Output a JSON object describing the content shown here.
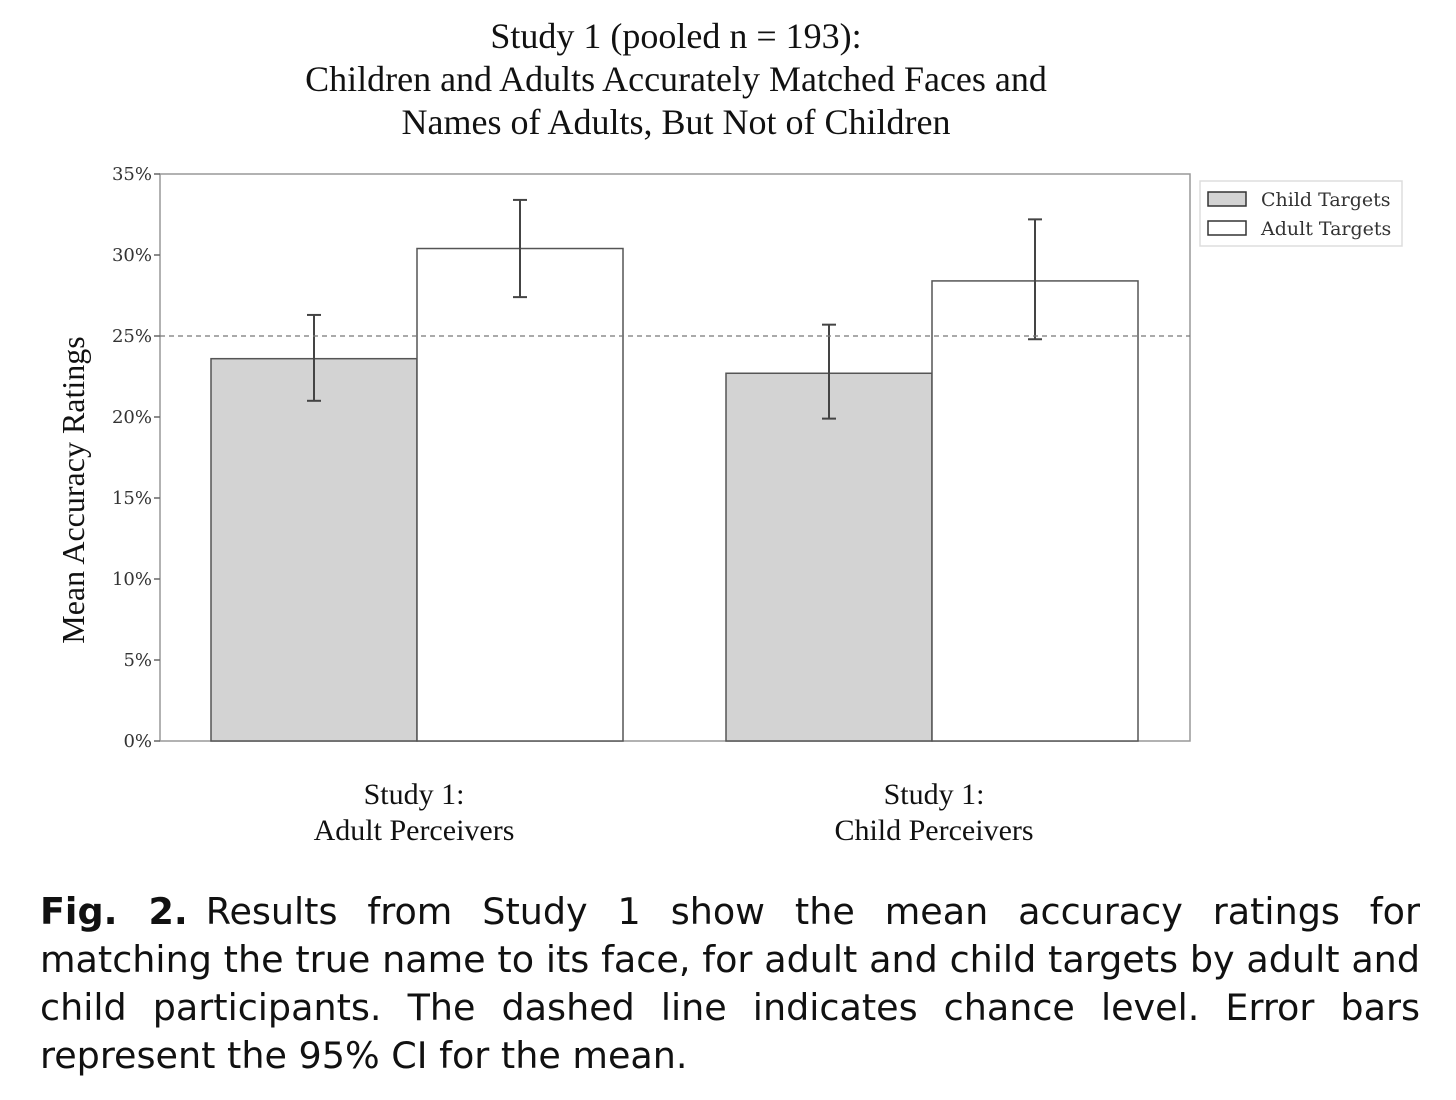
{
  "chart_data": {
    "type": "bar",
    "title_lines": [
      "Study 1 (pooled n = 193):",
      "Children and Adults Accurately Matched Faces and",
      "Names of Adults, But Not of Children"
    ],
    "ylabel": "Mean Accuracy Ratings",
    "xlabel": "",
    "categories": [
      [
        "Study 1:",
        "Adult Perceivers"
      ],
      [
        "Study 1:",
        "Child Perceivers"
      ]
    ],
    "ylim": [
      0,
      0.35
    ],
    "yticks": [
      0,
      0.05,
      0.1,
      0.15,
      0.2,
      0.25,
      0.3,
      0.35
    ],
    "ytick_labels": [
      "0%",
      "5%",
      "10%",
      "15%",
      "20%",
      "25%",
      "30%",
      "35%"
    ],
    "series": [
      {
        "name": "Child Targets",
        "color": "#d3d3d3",
        "values": [
          0.236,
          0.227
        ],
        "ci_low": [
          0.21,
          0.199
        ],
        "ci_high": [
          0.263,
          0.257
        ]
      },
      {
        "name": "Adult Targets",
        "color": "#ffffff",
        "values": [
          0.304,
          0.284
        ],
        "ci_low": [
          0.274,
          0.248
        ],
        "ci_high": [
          0.334,
          0.322
        ]
      }
    ],
    "reference_line": {
      "value": 0.25,
      "style": "dashed"
    },
    "legend_position": "outside-top-right",
    "grid": false
  },
  "caption": {
    "label": "Fig. 2.",
    "text": "Results from Study 1 show the mean accuracy ratings for matching the true name to its face, for adult and child targets by adult and child participants. The dashed line indicates chance level. Error bars represent the 95% CI for the mean."
  }
}
